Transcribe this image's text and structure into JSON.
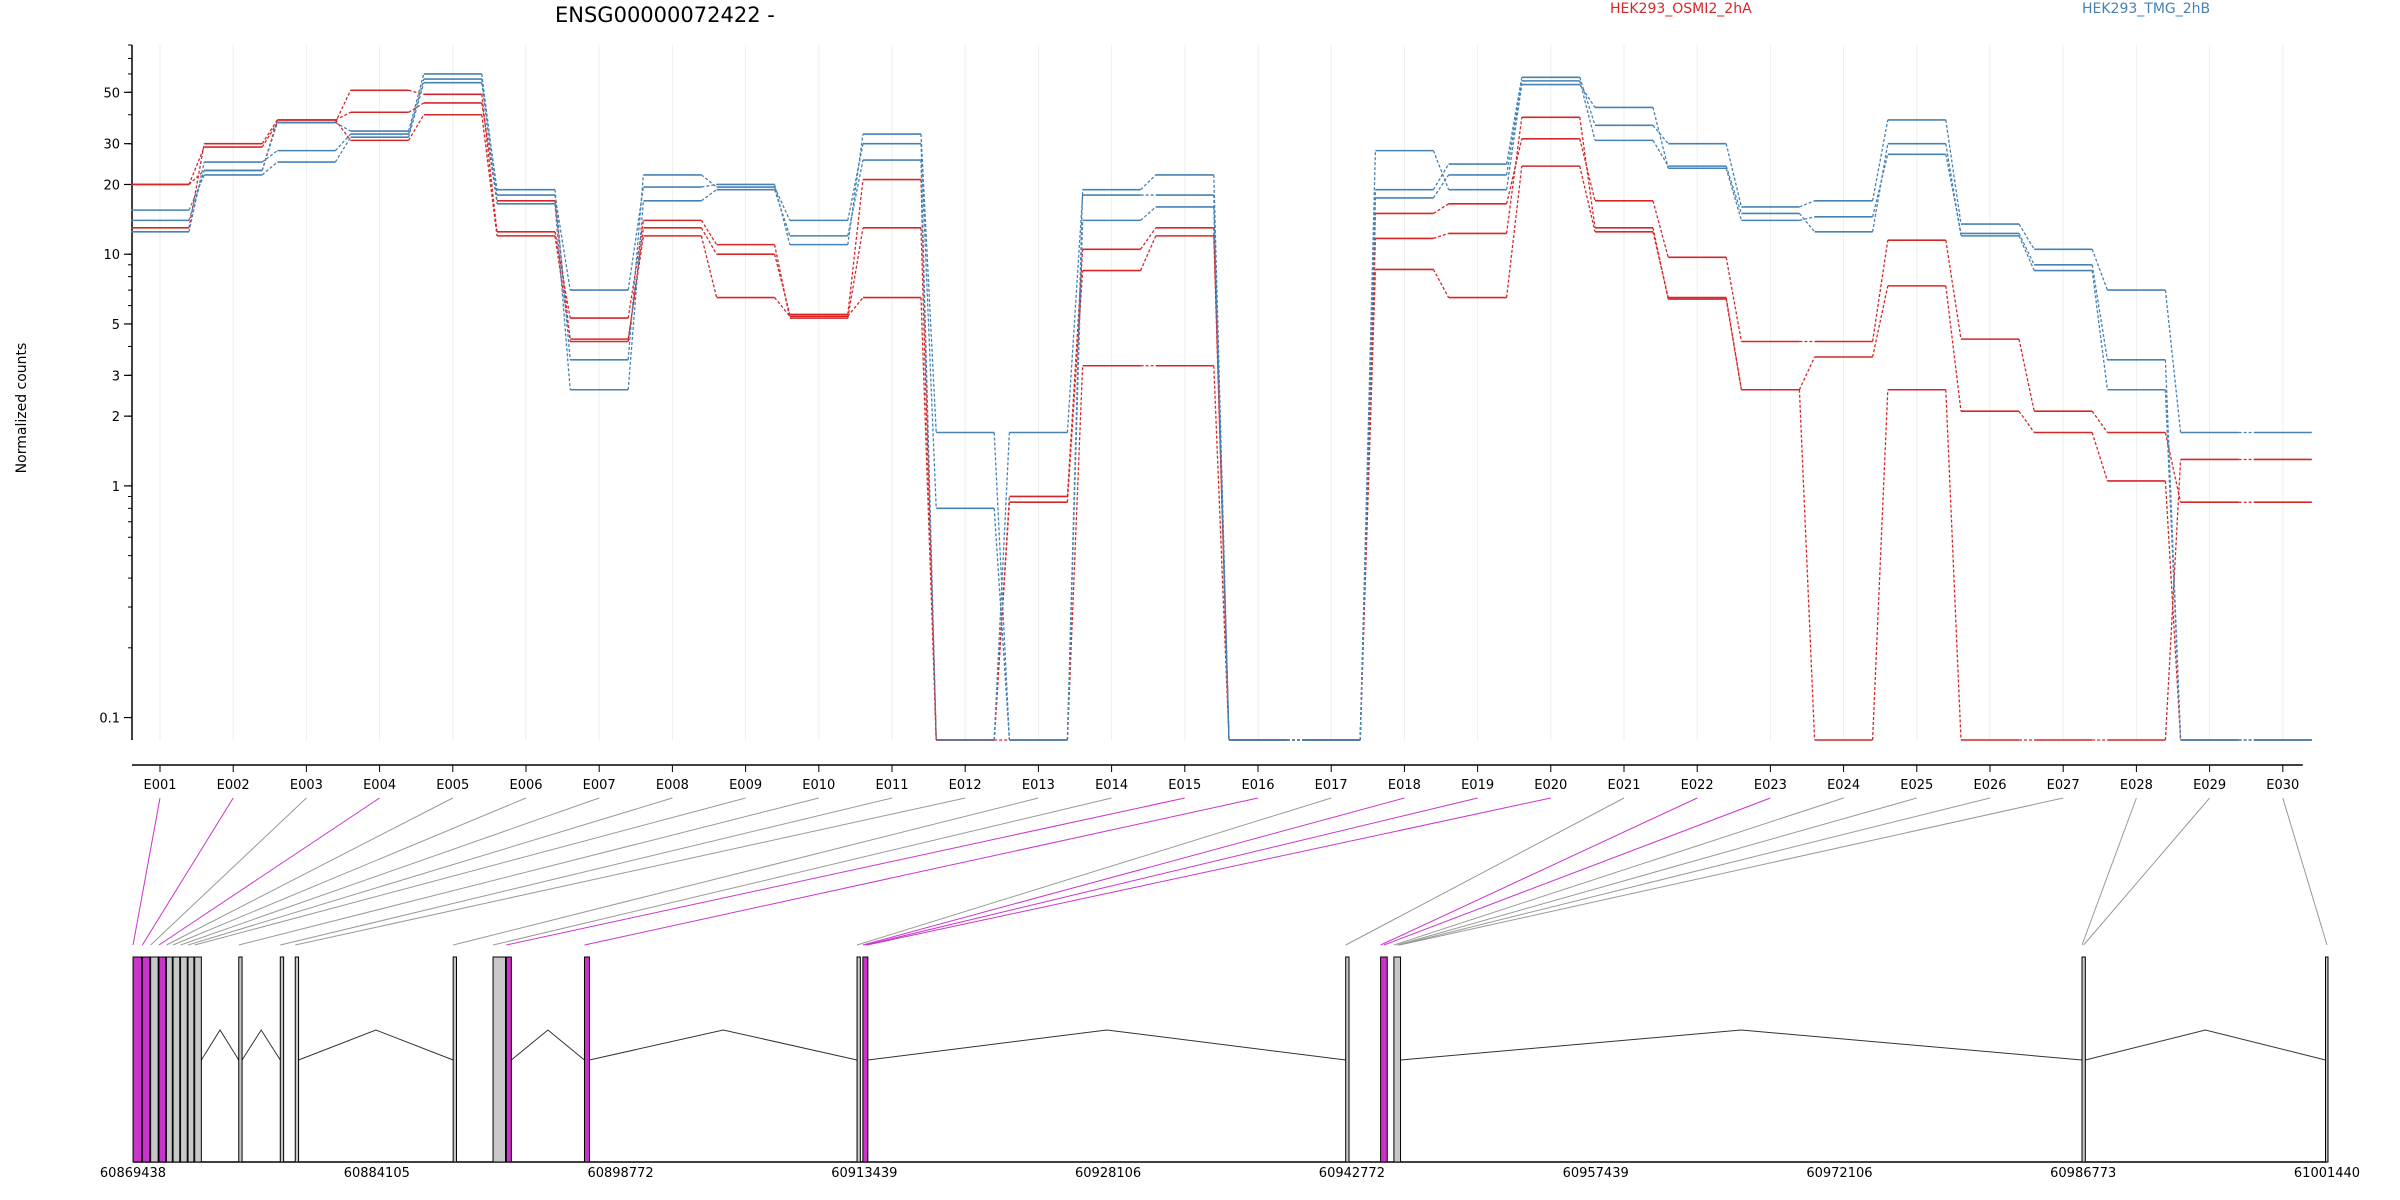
{
  "chart_data": {
    "type": "line",
    "title": "ENSG00000072422 -",
    "ylabel": "Normalized counts",
    "yscale": "log",
    "yticks": [
      0.1,
      1,
      2,
      3,
      5,
      10,
      20,
      30,
      50
    ],
    "ylim": [
      0.08,
      80
    ],
    "categories": [
      "E001",
      "E002",
      "E003",
      "E004",
      "E005",
      "E006",
      "E007",
      "E008",
      "E009",
      "E010",
      "E011",
      "E012",
      "E013",
      "E014",
      "E015",
      "E016",
      "E017",
      "E018",
      "E019",
      "E020",
      "E021",
      "E022",
      "E023",
      "E024",
      "E025",
      "E026",
      "E027",
      "E028",
      "E029",
      "E030"
    ],
    "series": [
      {
        "name": "HEK293_OSMI2_2hA",
        "color": "#d62728",
        "values": [
          20,
          23,
          38,
          31,
          40,
          12,
          4.3,
          12,
          6.5,
          5.4,
          6.5,
          0.08,
          0.08,
          3.3,
          3.3,
          0.08,
          0.08,
          8.6,
          6.5,
          24,
          12.5,
          6.5,
          2.6,
          0.08,
          2.6,
          0.08,
          0.08,
          0.08,
          1.3,
          1.3
        ]
      },
      {
        "name": "HEK293_OSMI2_2hA",
        "color": "#d62728",
        "values": [
          20,
          29,
          37,
          51,
          49,
          12.5,
          5.3,
          14,
          11,
          5.3,
          13,
          0.08,
          0.9,
          10.5,
          13,
          0.08,
          0.08,
          15,
          16.5,
          31.5,
          17,
          9.7,
          4.2,
          4.2,
          11.5,
          4.3,
          2.1,
          1.7,
          0.85,
          0.85
        ]
      },
      {
        "name": "HEK293_OSMI2_2hA",
        "color": "#d62728",
        "values": [
          13,
          30,
          38,
          41,
          45,
          17,
          4.2,
          13,
          10,
          5.5,
          21,
          0.08,
          0.85,
          8.5,
          12,
          0.08,
          0.08,
          11.7,
          12.3,
          39,
          13,
          6.4,
          2.6,
          3.6,
          7.3,
          2.1,
          1.7,
          1.05,
          0.08,
          0.08
        ]
      },
      {
        "name": "HEK293_TMG_2hB",
        "color": "#4682b4",
        "values": [
          15.5,
          22,
          25,
          32,
          55,
          16.5,
          2.6,
          17,
          19,
          12,
          25.5,
          0.08,
          1.7,
          18,
          18,
          0.08,
          0.08,
          17.5,
          22,
          56,
          31,
          24,
          15,
          12.5,
          30,
          12,
          8.5,
          2.6,
          0.08,
          0.08
        ]
      },
      {
        "name": "HEK293_TMG_2hB",
        "color": "#4682b4",
        "values": [
          12.5,
          25,
          28,
          33,
          57,
          19,
          3.5,
          22,
          19.5,
          14,
          30,
          0.8,
          0.08,
          14,
          16,
          0.08,
          0.08,
          19,
          24.5,
          58,
          36,
          30,
          16,
          17,
          38,
          13.5,
          10.5,
          7,
          1.7,
          1.7
        ]
      },
      {
        "name": "HEK293_TMG_2hB",
        "color": "#4682b4",
        "values": [
          14,
          23,
          37,
          34,
          60,
          18,
          7,
          19.5,
          20,
          11,
          33,
          1.7,
          0.08,
          19,
          22,
          0.08,
          0.08,
          28,
          19,
          54,
          43,
          23.5,
          14,
          14.5,
          27,
          12.3,
          9,
          3.5,
          0.08,
          0.08
        ]
      }
    ],
    "genomic_axis": {
      "range": [
        60869438,
        61001440
      ],
      "tick_labels": [
        "60869438",
        "60884105",
        "60898772",
        "60913439",
        "60928106",
        "60942772",
        "60957439",
        "60972106",
        "60986773",
        "61001440"
      ]
    },
    "exon_highlight_color": "#cc33cc",
    "exon_plain_color": "#c8c8c8"
  }
}
